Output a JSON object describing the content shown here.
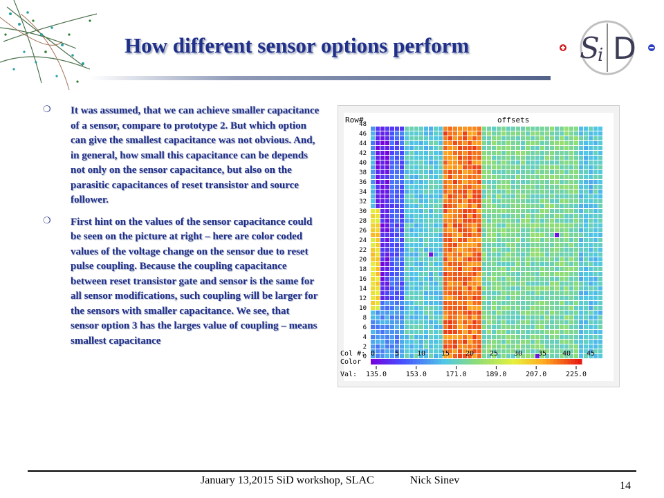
{
  "slide": {
    "title": "How different sensor options perform",
    "bullets": [
      "It was assumed, that we can achieve smaller capacitance of a sensor, compare to prototype 2. But which option can give the smallest capacitance was not obvious. And, in general, how small this capacitance can be depends not only on the sensor capacitance, but also on the parasitic capacitances of reset  transistor and source follower.",
      "First hint on the values of the sensor capacitance could be seen on the picture at right – here are color coded values of the voltage change on the sensor due to reset pulse coupling. Because the coupling capacitance between reset transistor gate and sensor is the same for all sensor modifications, such coupling will be larger for the sensors with smaller capacitance. We see, that sensor option 3 has the larges value of coupling – means smallest capacitance"
    ],
    "bullet_icon": "open-circle-bullet-icon",
    "decoration_icon": "particle-tracks-icon",
    "footer": {
      "date": "January 13,2015  SiD workshop, SLAC",
      "author": "Nick Sinev",
      "page": "14"
    },
    "logo": {
      "text": "SiD",
      "colors": {
        "ring": "#c0c0c0",
        "letters": "#3b3b55",
        "plus": "#d21f1f",
        "minus": "#2a3fc1"
      }
    },
    "colors": {
      "title": "#1f2f8a",
      "bar_dark": "#3d4e79"
    }
  },
  "chart_data": {
    "type": "heatmap",
    "title": "offsets",
    "row_label": "Row#",
    "col_label": "Col #:",
    "color_label": "Color",
    "val_label": "Val:",
    "rows": 48,
    "cols": 48,
    "row_ticks": [
      "0",
      "2",
      "4",
      "6",
      "8",
      "10",
      "12",
      "14",
      "16",
      "18",
      "20",
      "22",
      "24",
      "26",
      "28",
      "30",
      "32",
      "34",
      "36",
      "38",
      "40",
      "42",
      "44",
      "46",
      "48"
    ],
    "col_ticks": [
      "0",
      "5",
      "10",
      "15",
      "20",
      "25",
      "30",
      "35",
      "40",
      "45"
    ],
    "scale_ticks": [
      "135.0",
      "153.0",
      "171.0",
      "189.0",
      "207.0",
      "225.0"
    ],
    "value_range": [
      135,
      225
    ],
    "column_regions": [
      {
        "cols": [
          0,
          0
        ],
        "typical": 160
      },
      {
        "cols": [
          1,
          6
        ],
        "typical": 140,
        "note": "blue/violet block, greener below row 12"
      },
      {
        "cols": [
          7,
          14
        ],
        "typical": 168
      },
      {
        "cols": [
          15,
          22
        ],
        "typical": 215,
        "note": "orange/red band, sensor option 3"
      },
      {
        "cols": [
          23,
          42
        ],
        "typical": 176
      },
      {
        "cols": [
          43,
          47
        ],
        "typical": 168
      }
    ],
    "edge_feature": {
      "cols": [
        0,
        1
      ],
      "rows": [
        10,
        30
      ],
      "typical": 200
    },
    "outliers": [
      {
        "col": 12,
        "row": 21,
        "value": 138
      },
      {
        "col": 38,
        "row": 25,
        "value": 138
      },
      {
        "col": 34,
        "row": 0,
        "value": 138
      }
    ]
  }
}
